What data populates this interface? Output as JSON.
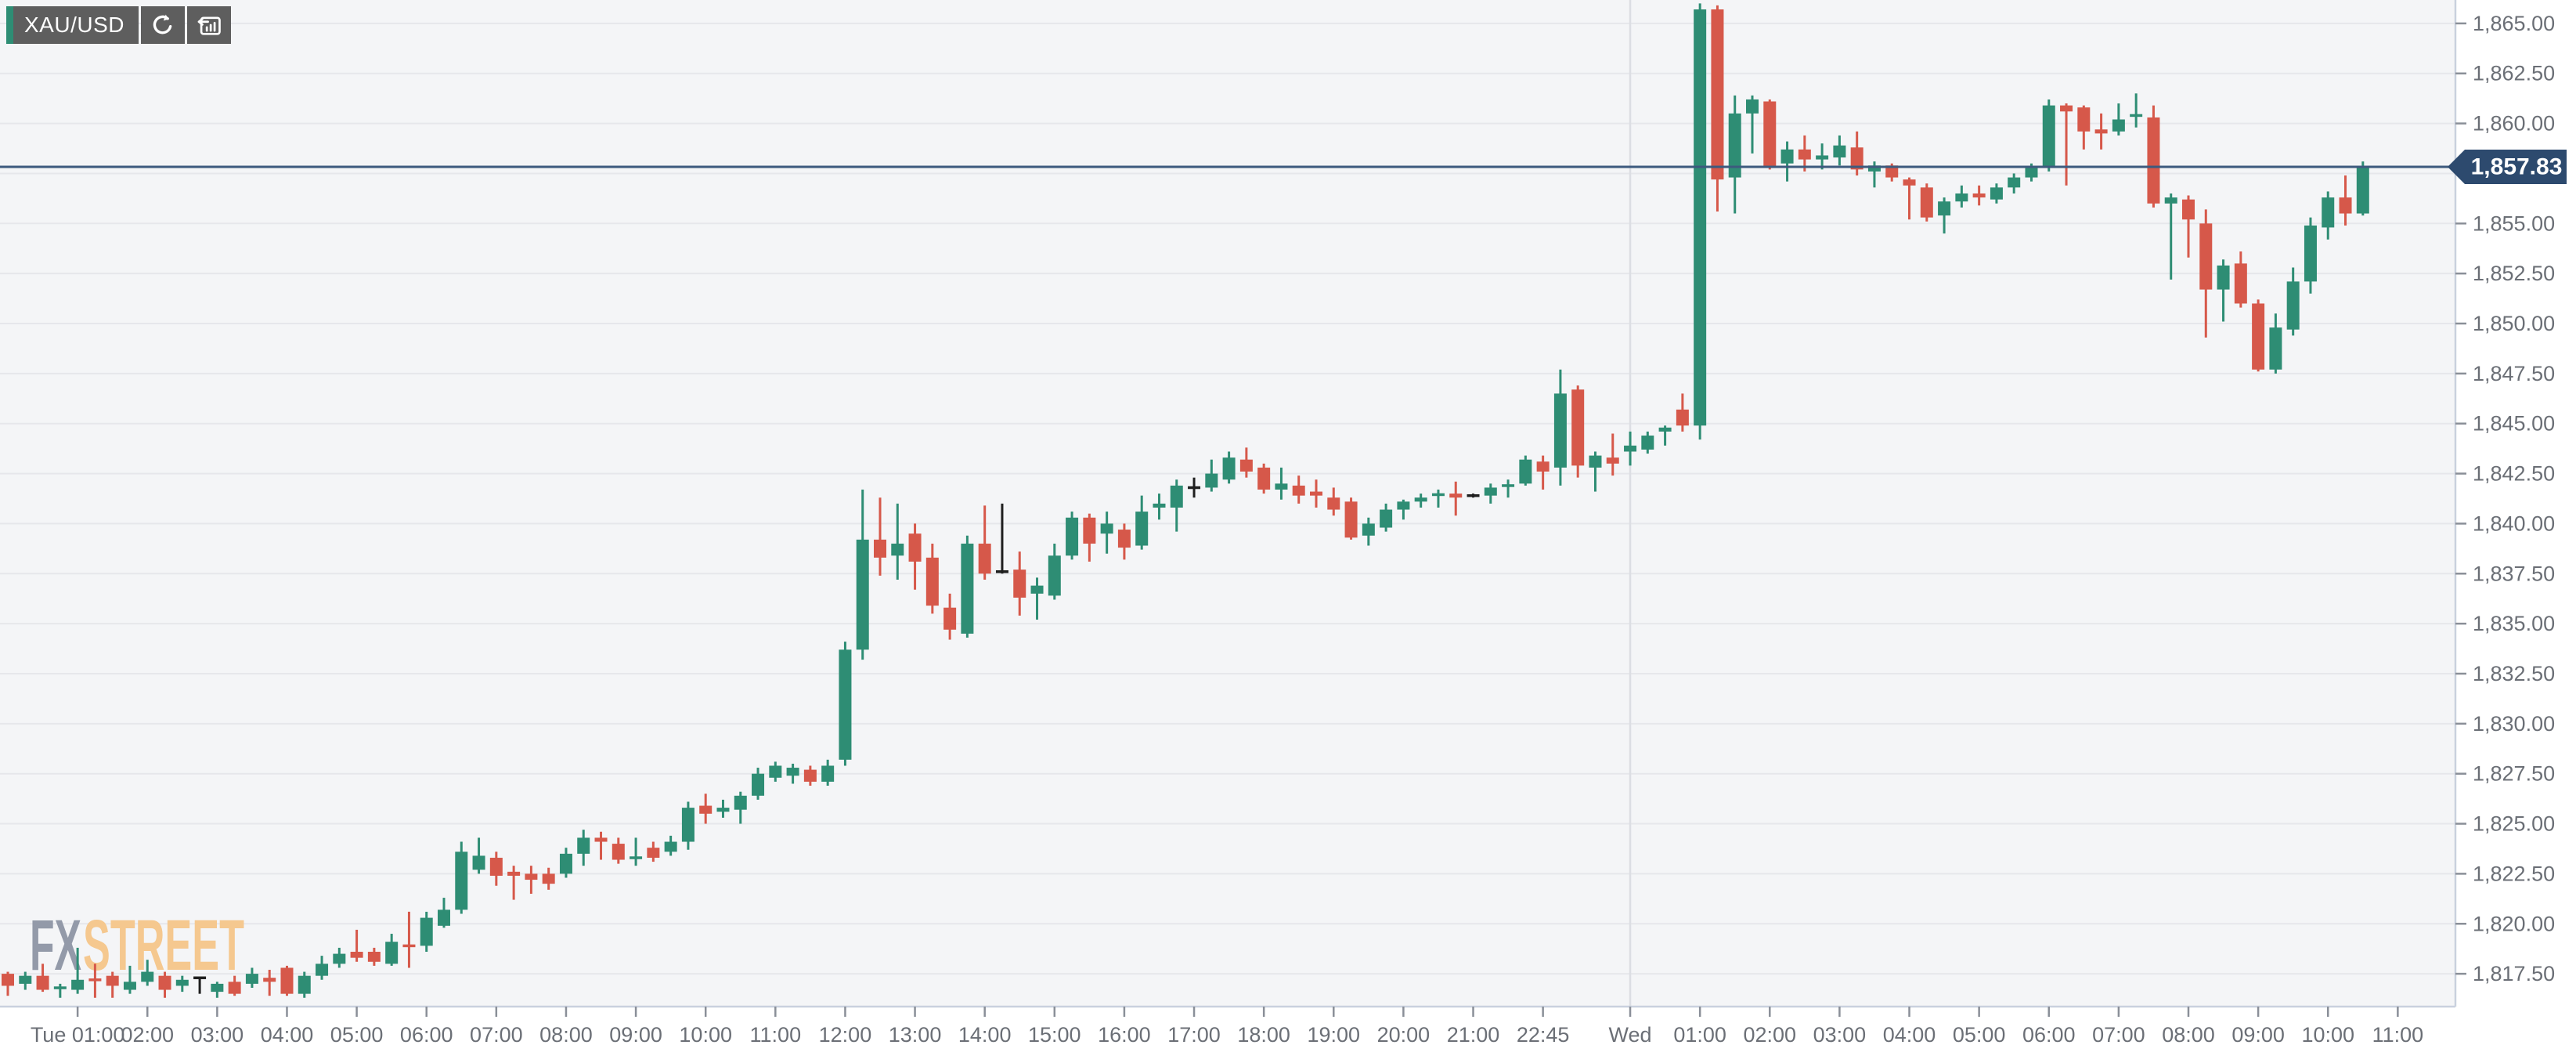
{
  "toolbar": {
    "symbol_label": "XAU/USD",
    "buttons": [
      {
        "name": "refresh-button",
        "icon": "refresh-icon"
      },
      {
        "name": "reset-chart-button",
        "icon": "reset-zoom-icon"
      }
    ]
  },
  "watermark": {
    "part1": "FX",
    "part2": "STREET",
    "part1_color": "#939aa9",
    "part2_color": "#f5c88f"
  },
  "price_line": {
    "value": 1857.83,
    "label": "1,857.83",
    "line_color": "#3d5a7e",
    "tag_bg": "#2d4a6e",
    "tag_text_color": "#ffffff"
  },
  "price_axis": {
    "tick_values": [
      1865.0,
      1862.5,
      1860.0,
      1857.5,
      1855.0,
      1852.5,
      1850.0,
      1847.5,
      1845.0,
      1842.5,
      1840.0,
      1837.5,
      1835.0,
      1832.5,
      1830.0,
      1827.5,
      1825.0,
      1822.5,
      1820.0,
      1817.5
    ],
    "tick_labels": [
      "1,865.00",
      "1,862.50",
      "1,860.00",
      "1,857.50",
      "1,855.00",
      "1,852.50",
      "1,850.00",
      "1,847.50",
      "1,845.00",
      "1,842.50",
      "1,840.00",
      "1,837.50",
      "1,835.00",
      "1,832.50",
      "1,830.00",
      "1,827.50",
      "1,825.00",
      "1,822.50",
      "1,820.00",
      "1,817.50"
    ],
    "text_color": "#6b6f76"
  },
  "time_axis": {
    "ticks": [
      {
        "slot": 4,
        "label": "Tue 01:00"
      },
      {
        "slot": 8,
        "label": "02:00"
      },
      {
        "slot": 12,
        "label": "03:00"
      },
      {
        "slot": 16,
        "label": "04:00"
      },
      {
        "slot": 20,
        "label": "05:00"
      },
      {
        "slot": 24,
        "label": "06:00"
      },
      {
        "slot": 28,
        "label": "07:00"
      },
      {
        "slot": 32,
        "label": "08:00"
      },
      {
        "slot": 36,
        "label": "09:00"
      },
      {
        "slot": 40,
        "label": "10:00"
      },
      {
        "slot": 44,
        "label": "11:00"
      },
      {
        "slot": 48,
        "label": "12:00"
      },
      {
        "slot": 52,
        "label": "13:00"
      },
      {
        "slot": 56,
        "label": "14:00"
      },
      {
        "slot": 60,
        "label": "15:00"
      },
      {
        "slot": 64,
        "label": "16:00"
      },
      {
        "slot": 68,
        "label": "17:00"
      },
      {
        "slot": 72,
        "label": "18:00"
      },
      {
        "slot": 76,
        "label": "19:00"
      },
      {
        "slot": 80,
        "label": "20:00"
      },
      {
        "slot": 84,
        "label": "21:00"
      },
      {
        "slot": 88,
        "label": "22:45"
      },
      {
        "slot": 93,
        "label": "Wed"
      },
      {
        "slot": 97,
        "label": "01:00"
      },
      {
        "slot": 101,
        "label": "02:00"
      },
      {
        "slot": 105,
        "label": "03:00"
      },
      {
        "slot": 109,
        "label": "04:00"
      },
      {
        "slot": 113,
        "label": "05:00"
      },
      {
        "slot": 117,
        "label": "06:00"
      },
      {
        "slot": 121,
        "label": "07:00"
      },
      {
        "slot": 125,
        "label": "08:00"
      },
      {
        "slot": 129,
        "label": "09:00"
      },
      {
        "slot": 133,
        "label": "10:00"
      },
      {
        "slot": 137,
        "label": "11:00"
      }
    ],
    "day_separator_slot": 93,
    "text_color": "#6b6f76"
  },
  "chart_data": {
    "type": "candlestick",
    "symbol": "XAU/USD",
    "current_price": 1857.83,
    "ylim": [
      1815.86,
      1866.17
    ],
    "grid": "horizontal-lines-every-2.50-plus-day-separator",
    "legend": "none",
    "colors": {
      "up": "#2e8d74",
      "down": "#d6584a",
      "neutral": "#1f1f1f",
      "plot_bg": "#f4f5f7",
      "grid": "#e6e7eb",
      "day_separator": "#dcdee3",
      "plot_border": "#c9d1de",
      "tick_dash": "#8a8f98"
    },
    "layout": {
      "plot_left": 0,
      "plot_top": 0,
      "plot_right": 3136,
      "plot_bottom": 1285,
      "x0": 10,
      "slot_w": 22.28,
      "body_half_w": 8,
      "wick_w": 3,
      "y_label_x": 3158,
      "x_label_y": 1330
    },
    "candles_format": [
      "open",
      "high",
      "low",
      "close"
    ],
    "candles": [
      [
        1817.5,
        1817.6,
        1816.4,
        1816.9
      ],
      [
        1817.0,
        1817.6,
        1816.7,
        1817.4
      ],
      [
        1817.4,
        1818.0,
        1816.6,
        1816.7
      ],
      [
        1816.7,
        1817.0,
        1816.3,
        1816.8
      ],
      [
        1816.7,
        1818.8,
        1816.5,
        1817.2
      ],
      [
        1817.2,
        1818.0,
        1816.3,
        1817.1
      ],
      [
        1817.4,
        1817.6,
        1816.3,
        1816.9
      ],
      [
        1816.7,
        1817.9,
        1816.5,
        1817.1
      ],
      [
        1817.1,
        1818.2,
        1816.9,
        1817.6
      ],
      [
        1817.4,
        1817.6,
        1816.3,
        1816.7
      ],
      [
        1816.9,
        1817.4,
        1816.6,
        1817.2
      ],
      [
        1817.3,
        1817.3,
        1816.5,
        1817.3
      ],
      [
        1816.6,
        1817.1,
        1816.3,
        1817.0
      ],
      [
        1817.1,
        1817.4,
        1816.4,
        1816.5
      ],
      [
        1817.0,
        1817.8,
        1816.8,
        1817.5
      ],
      [
        1817.3,
        1817.7,
        1816.4,
        1817.1
      ],
      [
        1817.8,
        1817.9,
        1816.4,
        1816.5
      ],
      [
        1816.5,
        1817.6,
        1816.3,
        1817.4
      ],
      [
        1817.4,
        1818.4,
        1817.2,
        1818.0
      ],
      [
        1818.0,
        1818.8,
        1817.8,
        1818.5
      ],
      [
        1818.6,
        1819.7,
        1818.1,
        1818.3
      ],
      [
        1818.6,
        1818.8,
        1817.9,
        1818.1
      ],
      [
        1818.0,
        1819.5,
        1817.9,
        1819.1
      ],
      [
        1818.9,
        1820.6,
        1817.8,
        1818.8
      ],
      [
        1818.9,
        1820.6,
        1818.6,
        1820.3
      ],
      [
        1819.9,
        1821.3,
        1819.8,
        1820.7
      ],
      [
        1820.7,
        1824.1,
        1820.5,
        1823.6
      ],
      [
        1822.7,
        1824.3,
        1822.5,
        1823.4
      ],
      [
        1823.3,
        1823.6,
        1821.9,
        1822.4
      ],
      [
        1822.6,
        1822.9,
        1821.2,
        1822.4
      ],
      [
        1822.5,
        1822.9,
        1821.5,
        1822.2
      ],
      [
        1822.5,
        1822.8,
        1821.7,
        1822.0
      ],
      [
        1822.5,
        1823.8,
        1822.3,
        1823.5
      ],
      [
        1823.5,
        1824.7,
        1822.9,
        1824.3
      ],
      [
        1824.3,
        1824.6,
        1823.2,
        1824.1
      ],
      [
        1824.0,
        1824.3,
        1823.0,
        1823.2
      ],
      [
        1823.2,
        1824.3,
        1822.9,
        1823.3
      ],
      [
        1823.8,
        1824.1,
        1823.1,
        1823.3
      ],
      [
        1823.6,
        1824.4,
        1823.4,
        1824.1
      ],
      [
        1824.1,
        1826.1,
        1823.7,
        1825.8
      ],
      [
        1825.9,
        1826.5,
        1825.0,
        1825.5
      ],
      [
        1825.6,
        1826.2,
        1825.3,
        1825.8
      ],
      [
        1825.7,
        1826.6,
        1825.0,
        1826.4
      ],
      [
        1826.4,
        1827.8,
        1826.2,
        1827.5
      ],
      [
        1827.3,
        1828.1,
        1827.1,
        1827.9
      ],
      [
        1827.4,
        1828.0,
        1827.0,
        1827.8
      ],
      [
        1827.7,
        1827.9,
        1826.9,
        1827.1
      ],
      [
        1827.1,
        1828.2,
        1826.9,
        1827.9
      ],
      [
        1828.2,
        1834.1,
        1827.9,
        1833.7
      ],
      [
        1833.7,
        1841.7,
        1833.2,
        1839.2
      ],
      [
        1839.2,
        1841.3,
        1837.4,
        1838.3
      ],
      [
        1838.4,
        1841.0,
        1837.2,
        1839.0
      ],
      [
        1839.5,
        1840.0,
        1836.7,
        1838.1
      ],
      [
        1838.3,
        1839.0,
        1835.5,
        1835.9
      ],
      [
        1835.8,
        1836.5,
        1834.2,
        1834.7
      ],
      [
        1834.5,
        1839.4,
        1834.3,
        1839.0
      ],
      [
        1839.0,
        1840.9,
        1837.2,
        1837.5
      ],
      [
        1837.6,
        1841.0,
        1837.5,
        1837.6
      ],
      [
        1837.7,
        1838.6,
        1835.4,
        1836.3
      ],
      [
        1836.5,
        1837.3,
        1835.2,
        1836.9
      ],
      [
        1836.4,
        1839.0,
        1836.2,
        1838.4
      ],
      [
        1838.4,
        1840.6,
        1838.2,
        1840.3
      ],
      [
        1840.3,
        1840.5,
        1838.1,
        1839.0
      ],
      [
        1839.5,
        1840.6,
        1838.5,
        1840.0
      ],
      [
        1839.7,
        1840.0,
        1838.2,
        1838.8
      ],
      [
        1838.9,
        1841.4,
        1838.7,
        1840.6
      ],
      [
        1840.8,
        1841.5,
        1840.2,
        1841.0
      ],
      [
        1840.8,
        1842.2,
        1839.6,
        1841.9
      ],
      [
        1841.8,
        1842.3,
        1841.3,
        1841.8
      ],
      [
        1841.8,
        1843.2,
        1841.6,
        1842.5
      ],
      [
        1842.2,
        1843.6,
        1842.0,
        1843.3
      ],
      [
        1843.2,
        1843.8,
        1842.3,
        1842.6
      ],
      [
        1842.8,
        1843.0,
        1841.5,
        1841.7
      ],
      [
        1841.7,
        1842.8,
        1841.2,
        1842.0
      ],
      [
        1841.9,
        1842.4,
        1841.0,
        1841.4
      ],
      [
        1841.6,
        1842.2,
        1840.8,
        1841.4
      ],
      [
        1841.3,
        1841.8,
        1840.4,
        1840.7
      ],
      [
        1841.1,
        1841.3,
        1839.2,
        1839.3
      ],
      [
        1839.4,
        1840.3,
        1838.9,
        1840.0
      ],
      [
        1839.8,
        1841.0,
        1839.6,
        1840.7
      ],
      [
        1840.7,
        1841.2,
        1840.2,
        1841.1
      ],
      [
        1841.1,
        1841.5,
        1840.8,
        1841.3
      ],
      [
        1841.4,
        1841.7,
        1840.8,
        1841.45
      ],
      [
        1841.5,
        1842.1,
        1840.4,
        1841.3
      ],
      [
        1841.4,
        1841.5,
        1841.3,
        1841.4
      ],
      [
        1841.4,
        1842.0,
        1841.0,
        1841.8
      ],
      [
        1841.8,
        1842.2,
        1841.3,
        1841.9
      ],
      [
        1842.0,
        1843.4,
        1841.9,
        1843.2
      ],
      [
        1843.1,
        1843.4,
        1841.7,
        1842.6
      ],
      [
        1842.8,
        1847.7,
        1841.9,
        1846.5
      ],
      [
        1846.7,
        1846.9,
        1842.3,
        1842.9
      ],
      [
        1842.8,
        1843.6,
        1841.6,
        1843.4
      ],
      [
        1843.3,
        1844.5,
        1842.4,
        1843.0
      ],
      [
        1843.6,
        1844.6,
        1842.9,
        1843.9
      ],
      [
        1843.7,
        1844.6,
        1843.5,
        1844.4
      ],
      [
        1844.6,
        1844.9,
        1843.9,
        1844.8
      ],
      [
        1845.7,
        1846.5,
        1844.6,
        1844.9
      ],
      [
        1844.9,
        1866.0,
        1844.2,
        1865.7
      ],
      [
        1865.7,
        1865.9,
        1855.6,
        1857.2
      ],
      [
        1857.3,
        1861.4,
        1855.5,
        1860.5
      ],
      [
        1860.5,
        1861.4,
        1858.5,
        1861.2
      ],
      [
        1861.1,
        1861.2,
        1857.7,
        1857.8
      ],
      [
        1858.0,
        1859.1,
        1857.1,
        1858.7
      ],
      [
        1858.7,
        1859.4,
        1857.6,
        1858.2
      ],
      [
        1858.2,
        1859.0,
        1857.7,
        1858.4
      ],
      [
        1858.3,
        1859.4,
        1857.9,
        1858.9
      ],
      [
        1858.8,
        1859.6,
        1857.4,
        1857.7
      ],
      [
        1857.6,
        1858.1,
        1856.8,
        1857.9
      ],
      [
        1857.9,
        1858.0,
        1857.1,
        1857.3
      ],
      [
        1857.2,
        1857.3,
        1855.2,
        1856.9
      ],
      [
        1856.8,
        1857.0,
        1855.1,
        1855.3
      ],
      [
        1855.4,
        1856.3,
        1854.5,
        1856.1
      ],
      [
        1856.1,
        1856.9,
        1855.8,
        1856.5
      ],
      [
        1856.5,
        1856.9,
        1855.9,
        1856.3
      ],
      [
        1856.2,
        1857.0,
        1856.0,
        1856.8
      ],
      [
        1856.8,
        1857.5,
        1856.5,
        1857.3
      ],
      [
        1857.3,
        1858.0,
        1857.1,
        1857.8
      ],
      [
        1857.8,
        1861.2,
        1857.6,
        1860.9
      ],
      [
        1860.9,
        1861.0,
        1856.9,
        1860.6
      ],
      [
        1860.8,
        1860.9,
        1858.7,
        1859.6
      ],
      [
        1859.7,
        1860.5,
        1858.7,
        1859.5
      ],
      [
        1859.6,
        1861.0,
        1859.4,
        1860.2
      ],
      [
        1860.3,
        1861.5,
        1859.8,
        1860.4
      ],
      [
        1860.3,
        1860.9,
        1855.8,
        1856.0
      ],
      [
        1856.0,
        1856.5,
        1852.2,
        1856.3
      ],
      [
        1856.2,
        1856.4,
        1853.3,
        1855.2
      ],
      [
        1855.0,
        1855.7,
        1849.3,
        1851.7
      ],
      [
        1851.7,
        1853.2,
        1850.1,
        1852.9
      ],
      [
        1853.0,
        1853.6,
        1850.8,
        1851.0
      ],
      [
        1851.0,
        1851.2,
        1847.6,
        1847.7
      ],
      [
        1847.7,
        1850.5,
        1847.5,
        1849.8
      ],
      [
        1849.7,
        1852.8,
        1849.4,
        1852.1
      ],
      [
        1852.1,
        1855.3,
        1851.5,
        1854.9
      ],
      [
        1854.8,
        1856.6,
        1854.2,
        1856.3
      ],
      [
        1856.3,
        1857.4,
        1854.9,
        1855.5
      ],
      [
        1855.5,
        1858.1,
        1855.4,
        1857.8
      ]
    ]
  }
}
